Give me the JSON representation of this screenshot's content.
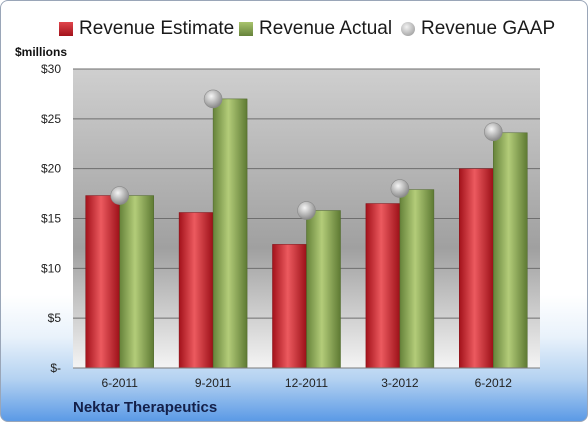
{
  "chart_data": {
    "type": "bar",
    "ylabel": "$millions",
    "ylim": [
      0,
      30
    ],
    "yticks": [
      0,
      5,
      10,
      15,
      20,
      25,
      30
    ],
    "ytick_labels": [
      "$-",
      "$5",
      "$10",
      "$15",
      "$20",
      "$25",
      "$30"
    ],
    "categories": [
      "6-2011",
      "9-2011",
      "12-2011",
      "3-2012",
      "6-2012"
    ],
    "series": [
      {
        "name": "Revenue Estimate",
        "type": "bar",
        "color": "#c8202a",
        "values": [
          17.3,
          15.6,
          12.4,
          16.5,
          20.0
        ]
      },
      {
        "name": "Revenue Actual",
        "type": "bar",
        "color": "#88a84a",
        "values": [
          17.3,
          27.0,
          15.8,
          17.9,
          23.6
        ]
      },
      {
        "name": "Revenue GAAP",
        "type": "marker",
        "color": "#b0b0b0",
        "values": [
          17.3,
          27.0,
          15.8,
          18.0,
          23.7
        ]
      }
    ],
    "legend_position": "top",
    "grid": true
  },
  "footer": {
    "company": "Nektar Therapeutics"
  }
}
